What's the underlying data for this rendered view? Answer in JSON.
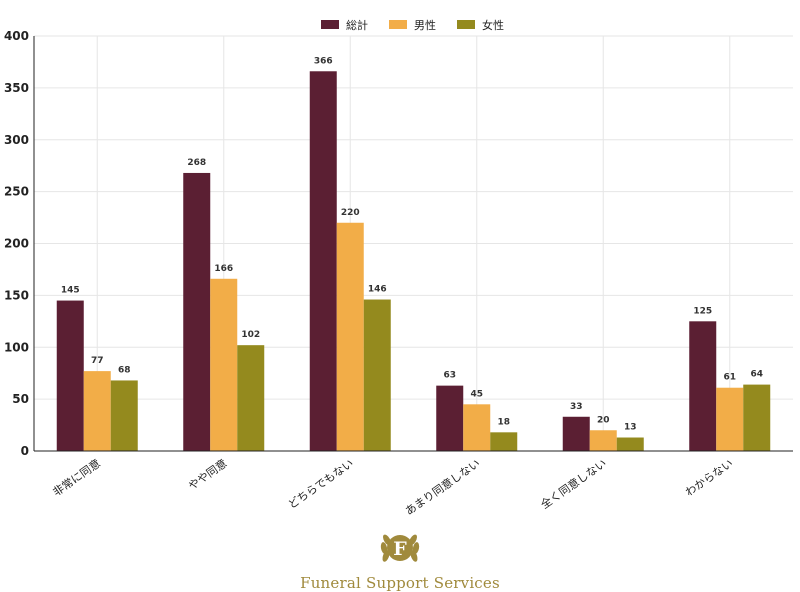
{
  "chart_data": {
    "type": "bar",
    "categories": [
      "非常に同意",
      "やや同意",
      "どちらでもない",
      "あまり同意しない",
      "全く同意しない",
      "わからない"
    ],
    "series": [
      {
        "name": "総計",
        "color": "#5b1f33",
        "values": [
          145,
          268,
          366,
          63,
          33,
          125
        ]
      },
      {
        "name": "男性",
        "color": "#f2ad48",
        "values": [
          77,
          166,
          220,
          45,
          20,
          61
        ]
      },
      {
        "name": "女性",
        "color": "#948a1e",
        "values": [
          68,
          102,
          146,
          18,
          13,
          64
        ]
      }
    ],
    "ylim": [
      0,
      400
    ],
    "yticks": [
      0,
      50,
      100,
      150,
      200,
      250,
      300,
      350,
      400
    ],
    "grid": true,
    "legend_position": "top-center",
    "title": "",
    "xlabel": "",
    "ylabel": ""
  },
  "branding": {
    "logo_letter": "F",
    "name": "Funeral Support Services",
    "color": "#a08a3c"
  }
}
